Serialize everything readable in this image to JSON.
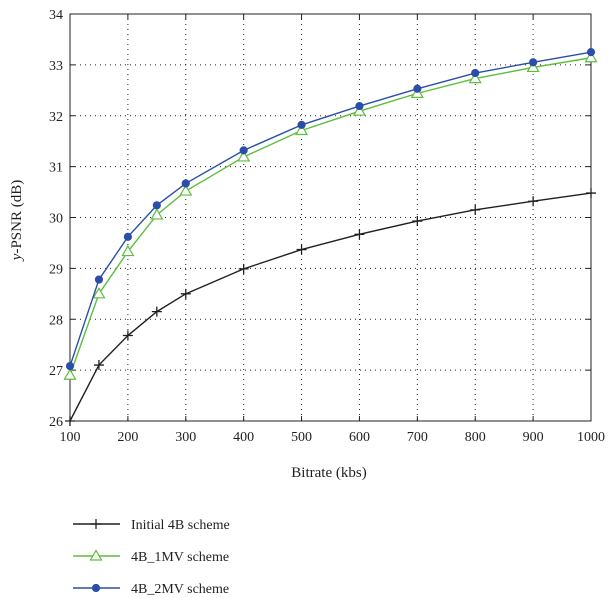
{
  "chart_data": {
    "type": "line",
    "xlabel": "Bitrate (kbs)",
    "ylabel_prefix": "y",
    "ylabel_rest": "-PSNR (dB)",
    "xlim": [
      100,
      1000
    ],
    "ylim": [
      26,
      34
    ],
    "x_ticks": [
      100,
      200,
      300,
      400,
      500,
      600,
      700,
      800,
      900,
      1000
    ],
    "y_ticks": [
      26,
      27,
      28,
      29,
      30,
      31,
      32,
      33,
      34
    ],
    "grid": true,
    "legend_position": "bottom",
    "x": [
      100,
      150,
      200,
      250,
      300,
      400,
      500,
      600,
      700,
      800,
      900,
      1000
    ],
    "series": [
      {
        "name": "Initial 4B scheme",
        "color": "#231f20",
        "marker": "plus",
        "values": [
          26.0,
          27.1,
          27.68,
          28.15,
          28.5,
          28.99,
          29.37,
          29.67,
          29.93,
          30.15,
          30.32,
          30.48
        ]
      },
      {
        "name": "4B_1MV scheme",
        "color": "#5bbf3a",
        "marker": "triangle",
        "values": [
          26.9,
          28.5,
          29.33,
          30.05,
          30.52,
          31.19,
          31.71,
          32.09,
          32.44,
          32.73,
          32.95,
          33.14
        ]
      },
      {
        "name": "4B_2MV scheme",
        "color": "#2b4fa8",
        "marker": "circle",
        "values": [
          27.08,
          28.78,
          29.62,
          30.24,
          30.67,
          31.32,
          31.82,
          32.19,
          32.53,
          32.84,
          33.05,
          33.25
        ]
      }
    ]
  }
}
